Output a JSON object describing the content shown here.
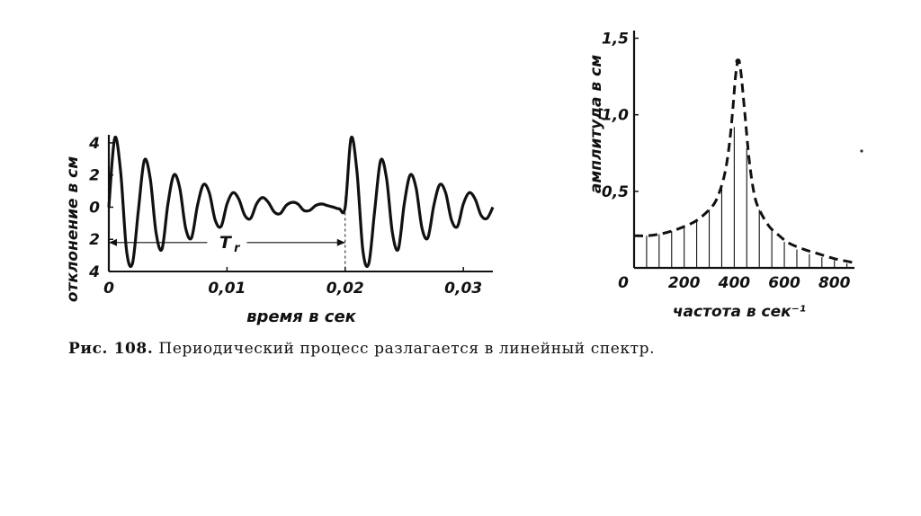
{
  "colors": {
    "ink": "#111111",
    "background": "#ffffff"
  },
  "caption": {
    "label": "Рис. 108.",
    "text": "Периодический процесс разлагается в линейный спектр."
  },
  "chart_data": [
    {
      "type": "line",
      "xlabel": "время в сек",
      "ylabel": "отклонение в см",
      "x_ticks": [
        {
          "value": 0,
          "label": "0"
        },
        {
          "value": 0.01,
          "label": "0,01"
        },
        {
          "value": 0.02,
          "label": "0,02"
        },
        {
          "value": 0.03,
          "label": "0,03"
        }
      ],
      "y_ticks": [
        {
          "value": 4,
          "label": "4"
        },
        {
          "value": 2,
          "label": "2"
        },
        {
          "value": 0,
          "label": "0"
        },
        {
          "value": -2,
          "label": "2"
        },
        {
          "value": -4,
          "label": "4"
        }
      ],
      "xlim": [
        0,
        0.0325
      ],
      "ylim": [
        -4,
        4.5
      ],
      "grid": false,
      "annotation": {
        "label": "T",
        "subscript": "r",
        "x_from": 0,
        "x_to": 0.02,
        "y": -2.2
      },
      "series": [
        {
          "x": [
            0,
            0.0005,
            0.001,
            0.0015,
            0.002,
            0.0025,
            0.003,
            0.0035,
            0.004,
            0.0045,
            0.005,
            0.0055,
            0.006,
            0.0065,
            0.007,
            0.0075,
            0.008,
            0.0085,
            0.009,
            0.0095,
            0.01,
            0.0105,
            0.011,
            0.0115,
            0.012,
            0.0125,
            0.013,
            0.0135,
            0.014,
            0.0145,
            0.015,
            0.0155,
            0.016,
            0.0165,
            0.017,
            0.0175,
            0.018,
            0.0185,
            0.019,
            0.0195,
            0.02,
            0.0205,
            0.021,
            0.0215,
            0.022,
            0.0225,
            0.023,
            0.0235,
            0.024,
            0.0245,
            0.025,
            0.0255,
            0.026,
            0.0265,
            0.027,
            0.0275,
            0.028,
            0.0285,
            0.029,
            0.0295,
            0.03,
            0.0305,
            0.031,
            0.0315,
            0.032,
            0.0325
          ],
          "y": [
            0,
            4.3,
            2.2,
            -2.7,
            -3.5,
            -0.2,
            2.9,
            1.8,
            -1.6,
            -2.6,
            0.2,
            2.0,
            1.2,
            -1.3,
            -1.9,
            0.1,
            1.4,
            0.9,
            -0.8,
            -1.2,
            0.2,
            0.9,
            0.5,
            -0.5,
            -0.7,
            0.2,
            0.6,
            0.3,
            -0.3,
            -0.4,
            0.1,
            0.3,
            0.2,
            -0.2,
            -0.2,
            0.1,
            0.2,
            0.1,
            0.0,
            -0.1,
            0.0,
            4.3,
            2.2,
            -2.7,
            -3.5,
            -0.2,
            2.9,
            1.8,
            -1.6,
            -2.6,
            0.2,
            2.0,
            1.2,
            -1.3,
            -1.9,
            0.1,
            1.4,
            0.9,
            -0.8,
            -1.2,
            0.2,
            0.9,
            0.5,
            -0.5,
            -0.7,
            0.0
          ]
        }
      ]
    },
    {
      "type": "bar",
      "xlabel": "частота в сек⁻¹",
      "ylabel": "амплитуда в см",
      "x_ticks": [
        {
          "value": 0,
          "label": "0"
        },
        {
          "value": 200,
          "label": "200"
        },
        {
          "value": 400,
          "label": "400"
        },
        {
          "value": 600,
          "label": "600"
        },
        {
          "value": 800,
          "label": "800"
        }
      ],
      "y_ticks": [
        {
          "value": 0.5,
          "label": "0,5"
        },
        {
          "value": 1.0,
          "label": "1,0"
        },
        {
          "value": 1.5,
          "label": "1,5"
        }
      ],
      "xlim": [
        0,
        880
      ],
      "ylim": [
        0,
        1.55
      ],
      "grid": false,
      "lines_x": [
        50,
        100,
        150,
        200,
        250,
        300,
        350,
        400,
        450,
        500,
        550,
        600,
        650,
        700,
        750,
        800,
        850
      ],
      "lines_y": [
        0.21,
        0.22,
        0.24,
        0.27,
        0.31,
        0.38,
        0.52,
        0.92,
        0.78,
        0.38,
        0.24,
        0.17,
        0.12,
        0.09,
        0.07,
        0.05,
        0.03
      ],
      "envelope": {
        "x": [
          0,
          50,
          100,
          150,
          200,
          250,
          300,
          330,
          360,
          380,
          395,
          405,
          415,
          425,
          440,
          460,
          480,
          500,
          540,
          580,
          620,
          680,
          740,
          800,
          860,
          880
        ],
        "y": [
          0.21,
          0.21,
          0.22,
          0.24,
          0.27,
          0.31,
          0.38,
          0.45,
          0.6,
          0.8,
          1.05,
          1.25,
          1.35,
          1.3,
          1.05,
          0.7,
          0.48,
          0.38,
          0.27,
          0.21,
          0.16,
          0.12,
          0.09,
          0.06,
          0.04,
          0.03
        ]
      }
    }
  ]
}
